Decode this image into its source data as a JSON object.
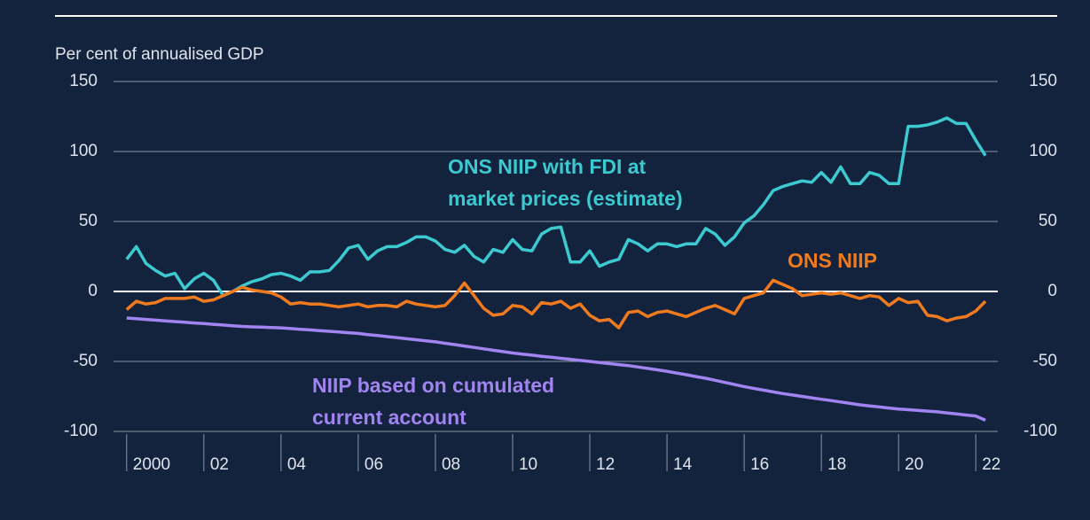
{
  "chart_data": {
    "type": "line",
    "y_axis_label": "Per cent of annualised GDP",
    "x": [
      2000,
      2000.25,
      2000.5,
      2000.75,
      2001,
      2001.25,
      2001.5,
      2001.75,
      2002,
      2002.25,
      2002.5,
      2002.75,
      2003,
      2003.25,
      2003.5,
      2003.75,
      2004,
      2004.25,
      2004.5,
      2004.75,
      2005,
      2005.25,
      2005.5,
      2005.75,
      2006,
      2006.25,
      2006.5,
      2006.75,
      2007,
      2007.25,
      2007.5,
      2007.75,
      2008,
      2008.25,
      2008.5,
      2008.75,
      2009,
      2009.25,
      2009.5,
      2009.75,
      2010,
      2010.25,
      2010.5,
      2010.75,
      2011,
      2011.25,
      2011.5,
      2011.75,
      2012,
      2012.25,
      2012.5,
      2012.75,
      2013,
      2013.25,
      2013.5,
      2013.75,
      2014,
      2014.25,
      2014.5,
      2014.75,
      2015,
      2015.25,
      2015.5,
      2015.75,
      2016,
      2016.25,
      2016.5,
      2016.75,
      2017,
      2017.25,
      2017.5,
      2017.75,
      2018,
      2018.25,
      2018.5,
      2018.75,
      2019,
      2019.25,
      2019.5,
      2019.75,
      2020,
      2020.25,
      2020.5,
      2020.75,
      2021,
      2021.25,
      2021.5,
      2021.75,
      2022,
      2022.25
    ],
    "series": [
      {
        "name": "ONS NIIP with FDI at market prices (estimate)",
        "color": "#3cc9cf",
        "values": [
          23,
          32,
          20,
          15,
          11,
          13,
          2,
          9,
          13,
          8,
          -3,
          0,
          4,
          7,
          9,
          12,
          13,
          11,
          8,
          14,
          14,
          15,
          22,
          31,
          33,
          23,
          29,
          32,
          32,
          35,
          39,
          39,
          36,
          30,
          28,
          33,
          25,
          21,
          30,
          28,
          37,
          30,
          29,
          41,
          45,
          46,
          21,
          21,
          29,
          18,
          21,
          23,
          37,
          34,
          29,
          34,
          34,
          32,
          34,
          34,
          45,
          41,
          33,
          39,
          49,
          54,
          62,
          72,
          75,
          77,
          79,
          78,
          85,
          78,
          89,
          77,
          77,
          85,
          83,
          77,
          77,
          118,
          118,
          119,
          121,
          124,
          120,
          120,
          108,
          97
        ]
      },
      {
        "name": "ONS NIIP",
        "color": "#f07a1e",
        "values": [
          -13,
          -7,
          -9,
          -8,
          -5,
          -5,
          -5,
          -4,
          -7,
          -6,
          -3,
          0,
          3,
          1,
          0,
          -1,
          -4,
          -9,
          -8,
          -9,
          -9,
          -10,
          -11,
          -10,
          -9,
          -11,
          -10,
          -10,
          -11,
          -7,
          -9,
          -10,
          -11,
          -10,
          -3,
          6,
          -3,
          -12,
          -17,
          -16,
          -10,
          -11,
          -16,
          -8,
          -9,
          -7,
          -12,
          -9,
          -17,
          -21,
          -20,
          -26,
          -15,
          -14,
          -18,
          -15,
          -14,
          -16,
          -18,
          -15,
          -12,
          -10,
          -13,
          -16,
          -5,
          -3,
          -1,
          8,
          5,
          2,
          -3,
          -2,
          -1,
          -2,
          -1,
          -3,
          -5,
          -3,
          -4,
          -10,
          -5,
          -8,
          -7,
          -17,
          -18,
          -21,
          -19,
          -18,
          -14,
          -7
        ]
      },
      {
        "name": "NIIP based on cumulated current account",
        "color": "#a184f0",
        "values": [
          -19,
          -19.5,
          -20,
          -20.5,
          -21,
          -21.5,
          -22,
          -22.5,
          -23,
          -23.5,
          -24,
          -24.5,
          -25,
          -25.3,
          -25.5,
          -25.8,
          -26,
          -26.5,
          -27,
          -27.5,
          -28,
          -28.5,
          -29,
          -29.5,
          -30,
          -30.8,
          -31.5,
          -32.3,
          -33,
          -33.8,
          -34.5,
          -35.3,
          -36,
          -37,
          -38,
          -39,
          -40,
          -41,
          -42,
          -43,
          -44,
          -44.8,
          -45.5,
          -46.3,
          -47,
          -47.8,
          -48.5,
          -49.3,
          -50,
          -50.8,
          -51.5,
          -52.3,
          -53,
          -54,
          -55,
          -56,
          -57,
          -58.3,
          -59.5,
          -60.8,
          -62,
          -63.5,
          -65,
          -66.5,
          -68,
          -69.3,
          -70.5,
          -71.8,
          -73,
          -74,
          -75,
          -76,
          -77,
          -78,
          -79,
          -80,
          -81,
          -81.8,
          -82.5,
          -83.3,
          -84,
          -84.5,
          -85,
          -85.5,
          -86,
          -86.8,
          -87.5,
          -88.3,
          -89,
          -92
        ]
      }
    ],
    "annotations": [
      {
        "series": 0,
        "lines": [
          "ONS NIIP with FDI at",
          "market prices (estimate)"
        ]
      },
      {
        "series": 1,
        "lines": [
          "ONS NIIP"
        ]
      },
      {
        "series": 2,
        "lines": [
          "NIIP based on cumulated",
          "current account"
        ]
      }
    ],
    "xlim": [
      1999.66,
      2022.57
    ],
    "xticks": [
      {
        "value": 2000,
        "label": "2000"
      },
      {
        "value": 2002,
        "label": "02"
      },
      {
        "value": 2004,
        "label": "04"
      },
      {
        "value": 2006,
        "label": "06"
      },
      {
        "value": 2008,
        "label": "08"
      },
      {
        "value": 2010,
        "label": "10"
      },
      {
        "value": 2012,
        "label": "12"
      },
      {
        "value": 2014,
        "label": "14"
      },
      {
        "value": 2016,
        "label": "16"
      },
      {
        "value": 2018,
        "label": "18"
      },
      {
        "value": 2020,
        "label": "20"
      },
      {
        "value": 2022,
        "label": "22"
      }
    ],
    "ylim": [
      -100,
      150
    ],
    "yticks": [
      -100,
      -50,
      0,
      50,
      100,
      150
    ],
    "y2lim": [
      -100,
      150
    ],
    "y2ticks": [
      -100,
      -50,
      0,
      50,
      100,
      150
    ],
    "grid": true
  }
}
